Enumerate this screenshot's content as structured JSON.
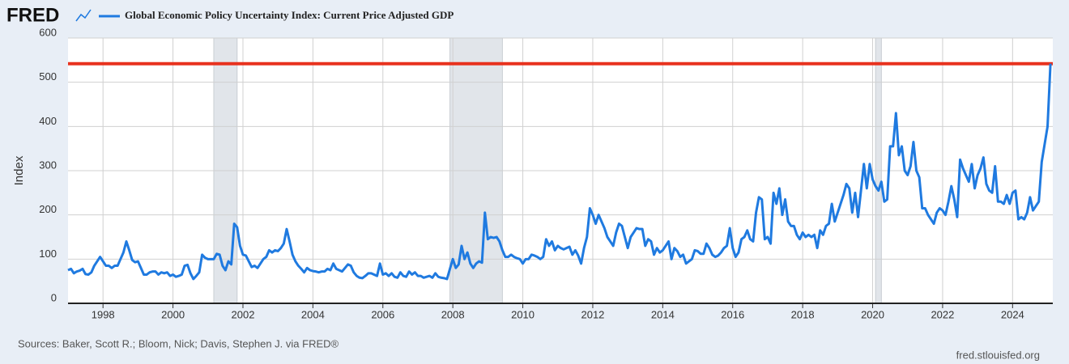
{
  "logo": "FRED",
  "chart_data": {
    "type": "line",
    "title": "Global Economic Policy Uncertainty Index: Current Price Adjusted GDP",
    "y_label": "Index",
    "source": "Sources: Baker, Scott R.; Bloom, Nick; Davis, Stephen J. via FRED®",
    "site": "fred.stlouisfed.org",
    "xlim": [
      1997,
      2025.15
    ],
    "xticks": [
      1998,
      2000,
      2002,
      2004,
      2006,
      2008,
      2010,
      2012,
      2014,
      2016,
      2018,
      2020,
      2022,
      2024
    ],
    "ylim": [
      0,
      600
    ],
    "yticks": [
      0,
      100,
      200,
      300,
      400,
      500,
      600
    ],
    "grid": true,
    "reference_line": 542,
    "reference_color": "#e8321e",
    "recessions": [
      [
        "2001-03",
        "2001-11"
      ],
      [
        "2007-12",
        "2009-06"
      ],
      [
        "2020-02",
        "2020-04"
      ]
    ],
    "x": [
      "1997-01",
      "1997-02",
      "1997-03",
      "1997-04",
      "1997-05",
      "1997-06",
      "1997-07",
      "1997-08",
      "1997-09",
      "1997-10",
      "1997-11",
      "1997-12",
      "1998-01",
      "1998-02",
      "1998-03",
      "1998-04",
      "1998-05",
      "1998-06",
      "1998-07",
      "1998-08",
      "1998-09",
      "1998-10",
      "1998-11",
      "1998-12",
      "1999-01",
      "1999-02",
      "1999-03",
      "1999-04",
      "1999-05",
      "1999-06",
      "1999-07",
      "1999-08",
      "1999-09",
      "1999-10",
      "1999-11",
      "1999-12",
      "2000-01",
      "2000-02",
      "2000-03",
      "2000-04",
      "2000-05",
      "2000-06",
      "2000-07",
      "2000-08",
      "2000-09",
      "2000-10",
      "2000-11",
      "2000-12",
      "2001-01",
      "2001-02",
      "2001-03",
      "2001-04",
      "2001-05",
      "2001-06",
      "2001-07",
      "2001-08",
      "2001-09",
      "2001-10",
      "2001-11",
      "2001-12",
      "2002-01",
      "2002-02",
      "2002-03",
      "2002-04",
      "2002-05",
      "2002-06",
      "2002-07",
      "2002-08",
      "2002-09",
      "2002-10",
      "2002-11",
      "2002-12",
      "2003-01",
      "2003-02",
      "2003-03",
      "2003-04",
      "2003-05",
      "2003-06",
      "2003-07",
      "2003-08",
      "2003-09",
      "2003-10",
      "2003-11",
      "2003-12",
      "2004-01",
      "2004-02",
      "2004-03",
      "2004-04",
      "2004-05",
      "2004-06",
      "2004-07",
      "2004-08",
      "2004-09",
      "2004-10",
      "2004-11",
      "2004-12",
      "2005-01",
      "2005-02",
      "2005-03",
      "2005-04",
      "2005-05",
      "2005-06",
      "2005-07",
      "2005-08",
      "2005-09",
      "2005-10",
      "2005-11",
      "2005-12",
      "2006-01",
      "2006-02",
      "2006-03",
      "2006-04",
      "2006-05",
      "2006-06",
      "2006-07",
      "2006-08",
      "2006-09",
      "2006-10",
      "2006-11",
      "2006-12",
      "2007-01",
      "2007-02",
      "2007-03",
      "2007-04",
      "2007-05",
      "2007-06",
      "2007-07",
      "2007-08",
      "2007-09",
      "2007-10",
      "2007-11",
      "2007-12",
      "2008-01",
      "2008-02",
      "2008-03",
      "2008-04",
      "2008-05",
      "2008-06",
      "2008-07",
      "2008-08",
      "2008-09",
      "2008-10",
      "2008-11",
      "2008-12",
      "2009-01",
      "2009-02",
      "2009-03",
      "2009-04",
      "2009-05",
      "2009-06",
      "2009-07",
      "2009-08",
      "2009-09",
      "2009-10",
      "2009-11",
      "2009-12",
      "2010-01",
      "2010-02",
      "2010-03",
      "2010-04",
      "2010-05",
      "2010-06",
      "2010-07",
      "2010-08",
      "2010-09",
      "2010-10",
      "2010-11",
      "2010-12",
      "2011-01",
      "2011-02",
      "2011-03",
      "2011-04",
      "2011-05",
      "2011-06",
      "2011-07",
      "2011-08",
      "2011-09",
      "2011-10",
      "2011-11",
      "2011-12",
      "2012-01",
      "2012-02",
      "2012-03",
      "2012-04",
      "2012-05",
      "2012-06",
      "2012-07",
      "2012-08",
      "2012-09",
      "2012-10",
      "2012-11",
      "2012-12",
      "2013-01",
      "2013-02",
      "2013-03",
      "2013-04",
      "2013-05",
      "2013-06",
      "2013-07",
      "2013-08",
      "2013-09",
      "2013-10",
      "2013-11",
      "2013-12",
      "2014-01",
      "2014-02",
      "2014-03",
      "2014-04",
      "2014-05",
      "2014-06",
      "2014-07",
      "2014-08",
      "2014-09",
      "2014-10",
      "2014-11",
      "2014-12",
      "2015-01",
      "2015-02",
      "2015-03",
      "2015-04",
      "2015-05",
      "2015-06",
      "2015-07",
      "2015-08",
      "2015-09",
      "2015-10",
      "2015-11",
      "2015-12",
      "2016-01",
      "2016-02",
      "2016-03",
      "2016-04",
      "2016-05",
      "2016-06",
      "2016-07",
      "2016-08",
      "2016-09",
      "2016-10",
      "2016-11",
      "2016-12",
      "2017-01",
      "2017-02",
      "2017-03",
      "2017-04",
      "2017-05",
      "2017-06",
      "2017-07",
      "2017-08",
      "2017-09",
      "2017-10",
      "2017-11",
      "2017-12",
      "2018-01",
      "2018-02",
      "2018-03",
      "2018-04",
      "2018-05",
      "2018-06",
      "2018-07",
      "2018-08",
      "2018-09",
      "2018-10",
      "2018-11",
      "2018-12",
      "2019-01",
      "2019-02",
      "2019-03",
      "2019-04",
      "2019-05",
      "2019-06",
      "2019-07",
      "2019-08",
      "2019-09",
      "2019-10",
      "2019-11",
      "2019-12",
      "2020-01",
      "2020-02",
      "2020-03",
      "2020-04",
      "2020-05",
      "2020-06",
      "2020-07",
      "2020-08",
      "2020-09",
      "2020-10",
      "2020-11",
      "2020-12",
      "2021-01",
      "2021-02",
      "2021-03",
      "2021-04",
      "2021-05",
      "2021-06",
      "2021-07",
      "2021-08",
      "2021-09",
      "2021-10",
      "2021-11",
      "2021-12",
      "2022-01",
      "2022-02",
      "2022-03",
      "2022-04",
      "2022-05",
      "2022-06",
      "2022-07",
      "2022-08",
      "2022-09",
      "2022-10",
      "2022-11",
      "2022-12",
      "2023-01",
      "2023-02",
      "2023-03",
      "2023-04",
      "2023-05",
      "2023-06",
      "2023-07",
      "2023-08",
      "2023-09",
      "2023-10",
      "2023-11",
      "2023-12",
      "2024-01",
      "2024-02",
      "2024-03",
      "2024-04",
      "2024-05",
      "2024-06",
      "2024-07",
      "2024-08",
      "2024-09",
      "2024-10",
      "2024-11",
      "2024-12",
      "2025-01",
      "2025-02"
    ],
    "series": [
      {
        "name": "Global Economic Policy Uncertainty Index: Current Price Adjusted GDP",
        "color": "#1f7ae0",
        "values": [
          75,
          78,
          68,
          72,
          74,
          78,
          66,
          65,
          70,
          85,
          95,
          105,
          95,
          85,
          85,
          80,
          85,
          85,
          100,
          115,
          140,
          120,
          98,
          93,
          95,
          80,
          65,
          65,
          70,
          72,
          72,
          65,
          70,
          68,
          70,
          62,
          65,
          60,
          62,
          65,
          85,
          87,
          68,
          55,
          62,
          70,
          110,
          103,
          100,
          100,
          100,
          112,
          110,
          85,
          75,
          95,
          88,
          180,
          172,
          130,
          110,
          108,
          95,
          82,
          85,
          80,
          90,
          100,
          105,
          120,
          115,
          120,
          118,
          125,
          135,
          168,
          140,
          110,
          95,
          85,
          78,
          70,
          80,
          75,
          73,
          72,
          70,
          72,
          72,
          78,
          75,
          90,
          78,
          75,
          72,
          80,
          88,
          85,
          70,
          62,
          58,
          57,
          62,
          68,
          68,
          65,
          62,
          90,
          65,
          68,
          62,
          68,
          60,
          58,
          70,
          62,
          60,
          72,
          65,
          70,
          62,
          62,
          58,
          60,
          62,
          58,
          68,
          60,
          58,
          57,
          55,
          78,
          100,
          80,
          88,
          130,
          100,
          115,
          90,
          80,
          90,
          95,
          92,
          205,
          145,
          150,
          148,
          150,
          140,
          120,
          105,
          105,
          110,
          105,
          102,
          100,
          90,
          100,
          100,
          110,
          108,
          105,
          100,
          105,
          145,
          130,
          140,
          120,
          130,
          125,
          122,
          125,
          128,
          110,
          120,
          108,
          90,
          125,
          150,
          215,
          200,
          180,
          200,
          185,
          170,
          150,
          140,
          130,
          160,
          180,
          175,
          150,
          125,
          150,
          160,
          170,
          168,
          168,
          130,
          145,
          140,
          110,
          125,
          115,
          120,
          130,
          140,
          100,
          125,
          118,
          105,
          110,
          90,
          95,
          100,
          120,
          118,
          112,
          112,
          135,
          125,
          110,
          105,
          108,
          115,
          125,
          130,
          170,
          125,
          105,
          115,
          145,
          150,
          165,
          145,
          140,
          205,
          240,
          235,
          145,
          150,
          135,
          250,
          225,
          260,
          200,
          235,
          185,
          175,
          175,
          155,
          145,
          160,
          150,
          155,
          150,
          155,
          125,
          165,
          155,
          175,
          180,
          225,
          185,
          205,
          225,
          245,
          270,
          260,
          205,
          250,
          195,
          255,
          315,
          260,
          315,
          280,
          265,
          255,
          275,
          230,
          235,
          355,
          355,
          430,
          335,
          355,
          300,
          290,
          310,
          365,
          300,
          285,
          215,
          215,
          200,
          190,
          180,
          205,
          215,
          210,
          200,
          230,
          265,
          235,
          195,
          325,
          305,
          290,
          275,
          315,
          260,
          290,
          305,
          330,
          270,
          255,
          250,
          310,
          230,
          230,
          225,
          245,
          225,
          250,
          255,
          190,
          195,
          190,
          205,
          240,
          210,
          220,
          230,
          320,
          360,
          400,
          542
        ]
      }
    ]
  }
}
